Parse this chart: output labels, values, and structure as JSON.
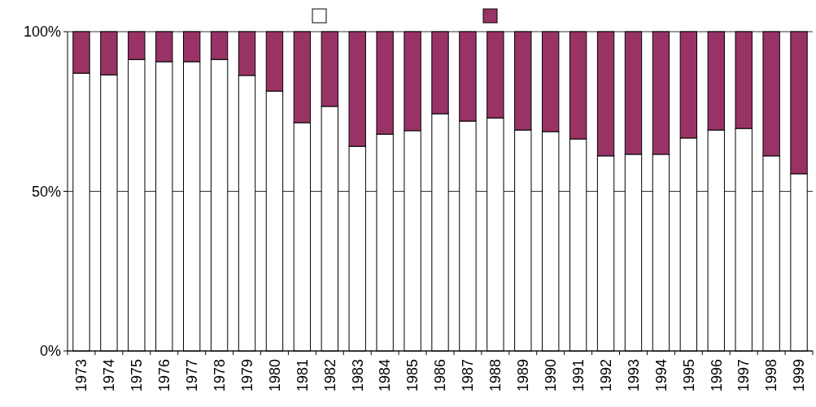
{
  "chart_data": {
    "type": "bar",
    "stacked": true,
    "categories": [
      "1973",
      "1974",
      "1975",
      "1976",
      "1977",
      "1978",
      "1979",
      "1980",
      "1981",
      "1982",
      "1983",
      "1984",
      "1985",
      "1986",
      "1987",
      "1988",
      "1989",
      "1990",
      "1991",
      "1992",
      "1993",
      "1994",
      "1995",
      "1996",
      "1997",
      "1998",
      "1999"
    ],
    "series": [
      {
        "color": "#ffffff",
        "values": [
          87,
          86.5,
          91.3,
          90.6,
          90.6,
          91.3,
          86.3,
          81.4,
          71.5,
          76.6,
          64.1,
          67.9,
          69,
          74.3,
          72,
          73,
          69.2,
          68.7,
          66.4,
          61.1,
          61.6,
          61.6,
          66.7,
          69.2,
          69.7,
          61.1,
          55.5
        ]
      },
      {
        "color": "#993366",
        "values": [
          13,
          13.5,
          8.7,
          9.4,
          9.4,
          8.7,
          13.7,
          18.6,
          28.5,
          23.4,
          35.9,
          32.1,
          31,
          25.7,
          28,
          27,
          30.8,
          31.3,
          33.6,
          38.9,
          38.4,
          38.4,
          33.3,
          30.8,
          30.3,
          38.9,
          44.5
        ]
      }
    ],
    "ylim": [
      0,
      100
    ],
    "yticks": [
      {
        "value": 0,
        "label": "0%"
      },
      {
        "value": 50,
        "label": "50%"
      },
      {
        "value": 100,
        "label": "100%"
      }
    ],
    "grid": "y"
  }
}
